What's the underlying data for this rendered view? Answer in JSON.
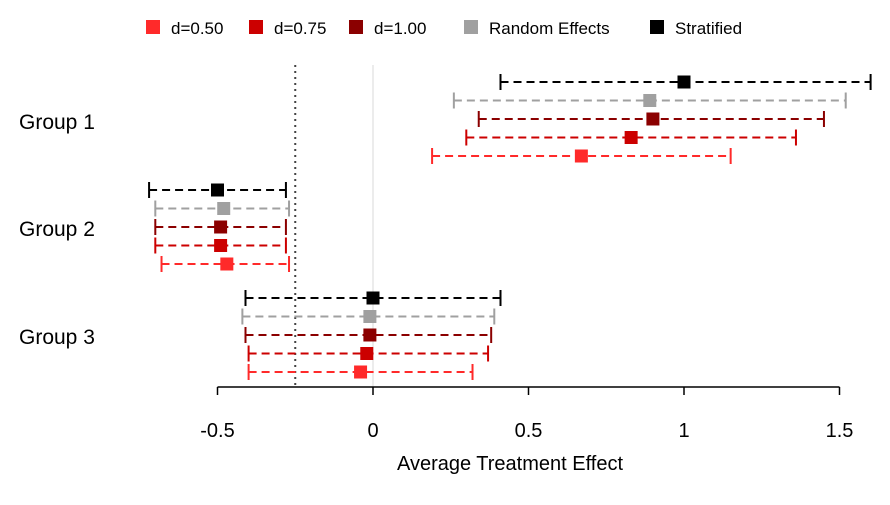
{
  "chart_data": {
    "type": "forest",
    "xlabel": "Average Treatment Effect",
    "xlim": [
      -0.5,
      1.5
    ],
    "xticks": [
      -0.5,
      0,
      0.5,
      1,
      1.5
    ],
    "xtick_labels": [
      "-0.5",
      "0",
      "0.5",
      "1",
      "1.5"
    ],
    "reference_lines": [
      {
        "x": 0,
        "style": "solid",
        "color": "#d9d9d9"
      },
      {
        "x": -0.25,
        "style": "dotted",
        "color": "#444444"
      }
    ],
    "legend_position": "top",
    "groups": [
      "Group 1",
      "Group 2",
      "Group 3"
    ],
    "series": [
      {
        "name": "d=0.50",
        "color": "#ff2a2a",
        "points": [
          {
            "group": "Group 1",
            "estimate": 0.67,
            "lower": 0.19,
            "upper": 1.15
          },
          {
            "group": "Group 2",
            "estimate": -0.47,
            "lower": -0.68,
            "upper": -0.27
          },
          {
            "group": "Group 3",
            "estimate": -0.04,
            "lower": -0.4,
            "upper": 0.32
          }
        ]
      },
      {
        "name": "d=0.75",
        "color": "#cc0000",
        "points": [
          {
            "group": "Group 1",
            "estimate": 0.83,
            "lower": 0.3,
            "upper": 1.36
          },
          {
            "group": "Group 2",
            "estimate": -0.49,
            "lower": -0.7,
            "upper": -0.28
          },
          {
            "group": "Group 3",
            "estimate": -0.02,
            "lower": -0.4,
            "upper": 0.37
          }
        ]
      },
      {
        "name": "d=1.00",
        "color": "#8b0000",
        "points": [
          {
            "group": "Group 1",
            "estimate": 0.9,
            "lower": 0.34,
            "upper": 1.45
          },
          {
            "group": "Group 2",
            "estimate": -0.49,
            "lower": -0.7,
            "upper": -0.28
          },
          {
            "group": "Group 3",
            "estimate": -0.01,
            "lower": -0.41,
            "upper": 0.38
          }
        ]
      },
      {
        "name": "Random Effects",
        "color": "#a0a0a0",
        "points": [
          {
            "group": "Group 1",
            "estimate": 0.89,
            "lower": 0.26,
            "upper": 1.52
          },
          {
            "group": "Group 2",
            "estimate": -0.48,
            "lower": -0.7,
            "upper": -0.27
          },
          {
            "group": "Group 3",
            "estimate": -0.01,
            "lower": -0.42,
            "upper": 0.39
          }
        ]
      },
      {
        "name": "Stratified",
        "color": "#000000",
        "points": [
          {
            "group": "Group 1",
            "estimate": 1.0,
            "lower": 0.41,
            "upper": 1.6
          },
          {
            "group": "Group 2",
            "estimate": -0.5,
            "lower": -0.72,
            "upper": -0.28
          },
          {
            "group": "Group 3",
            "estimate": 0.0,
            "lower": -0.41,
            "upper": 0.41
          }
        ]
      }
    ]
  }
}
